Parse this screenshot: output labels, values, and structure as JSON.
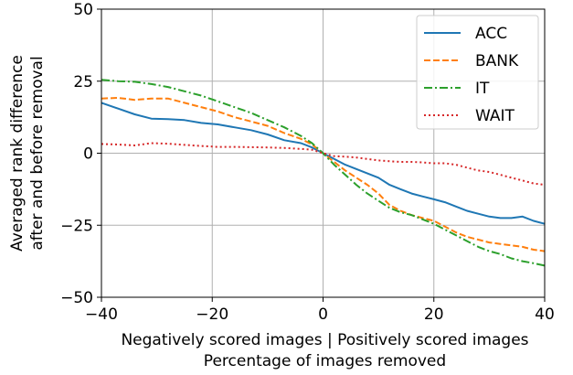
{
  "chart_data": {
    "type": "line",
    "xlabel_line1": "Negatively scored images  |  Positively scored images",
    "xlabel_line2": "Percentage of images removed",
    "ylabel_line1": "Averaged rank difference",
    "ylabel_line2": "after and before removal",
    "xlim": [
      -40,
      40
    ],
    "ylim": [
      -50,
      50
    ],
    "xticks": [
      -40,
      -20,
      0,
      20,
      40
    ],
    "xtick_labels": [
      "−40",
      "−20",
      "0",
      "20",
      "40"
    ],
    "yticks": [
      -50,
      -25,
      0,
      25,
      50
    ],
    "ytick_labels": [
      "−50",
      "−25",
      "0",
      "25",
      "50"
    ],
    "grid": true,
    "legend_position": "top-right",
    "series": [
      {
        "name": "ACC",
        "color": "#1f77b4",
        "dash": "solid",
        "x": [
          -40,
          -37,
          -34,
          -31,
          -28,
          -25,
          -22,
          -19,
          -16,
          -13,
          -10,
          -7,
          -4,
          -2,
          0,
          2,
          4,
          6,
          8,
          10,
          12,
          14,
          16,
          18,
          20,
          22,
          24,
          26,
          28,
          30,
          32,
          34,
          36,
          38,
          40
        ],
        "y": [
          17.5,
          15.5,
          13.5,
          12,
          11.8,
          11.5,
          10.5,
          10,
          9,
          8,
          6.5,
          4.5,
          3.5,
          2,
          0,
          -2,
          -4,
          -5.5,
          -7,
          -8.5,
          -11,
          -12.5,
          -14,
          -15,
          -16,
          -17,
          -18.5,
          -20,
          -21,
          -22,
          -22.5,
          -22.5,
          -22,
          -23.5,
          -24.5
        ]
      },
      {
        "name": "BANK",
        "color": "#ff7f0e",
        "dash": "dashed",
        "x": [
          -40,
          -37,
          -34,
          -31,
          -28,
          -25,
          -22,
          -19,
          -16,
          -13,
          -10,
          -7,
          -4,
          -2,
          0,
          2,
          4,
          6,
          8,
          10,
          12,
          14,
          16,
          18,
          20,
          22,
          24,
          26,
          28,
          30,
          32,
          34,
          36,
          38,
          40
        ],
        "y": [
          19,
          19.2,
          18.5,
          19,
          19,
          17.5,
          16,
          14.5,
          12.5,
          11,
          9.5,
          7,
          5,
          3,
          0,
          -3,
          -6,
          -8.5,
          -11,
          -14,
          -18,
          -20,
          -21.5,
          -22.5,
          -23.5,
          -25.5,
          -27.5,
          -29,
          -30,
          -31,
          -31.5,
          -32,
          -32.5,
          -33.5,
          -34
        ]
      },
      {
        "name": "IT",
        "color": "#2ca02c",
        "dash": "dashdot",
        "x": [
          -40,
          -37,
          -34,
          -31,
          -28,
          -25,
          -22,
          -19,
          -16,
          -13,
          -10,
          -7,
          -4,
          -2,
          0,
          2,
          4,
          6,
          8,
          10,
          12,
          14,
          16,
          18,
          20,
          22,
          24,
          26,
          28,
          30,
          32,
          34,
          36,
          38,
          40
        ],
        "y": [
          25.5,
          25,
          24.8,
          24,
          23,
          21.5,
          20,
          18,
          16,
          14,
          11.5,
          9,
          6,
          3.5,
          0,
          -4,
          -7.5,
          -11,
          -14,
          -16.5,
          -19,
          -20.5,
          -21.5,
          -23,
          -24.5,
          -26.5,
          -28.5,
          -30.5,
          -32.5,
          -34,
          -35,
          -36.5,
          -37.5,
          -38.2,
          -39
        ]
      },
      {
        "name": "WAIT",
        "color": "#d62728",
        "dash": "dotted",
        "x": [
          -40,
          -37,
          -34,
          -31,
          -28,
          -25,
          -22,
          -19,
          -16,
          -13,
          -10,
          -7,
          -4,
          -2,
          0,
          2,
          4,
          6,
          8,
          10,
          12,
          14,
          16,
          18,
          20,
          22,
          24,
          26,
          28,
          30,
          32,
          34,
          36,
          38,
          40
        ],
        "y": [
          3.2,
          3,
          2.7,
          3.5,
          3.3,
          2.9,
          2.5,
          2.2,
          2.2,
          2.1,
          2,
          1.8,
          1.5,
          1.2,
          0,
          -1,
          -1.2,
          -1.5,
          -2,
          -2.5,
          -2.8,
          -3,
          -3,
          -3.2,
          -3.5,
          -3.5,
          -4,
          -5,
          -6,
          -6.5,
          -7.5,
          -8.5,
          -9.5,
          -10.5,
          -11
        ]
      }
    ]
  }
}
